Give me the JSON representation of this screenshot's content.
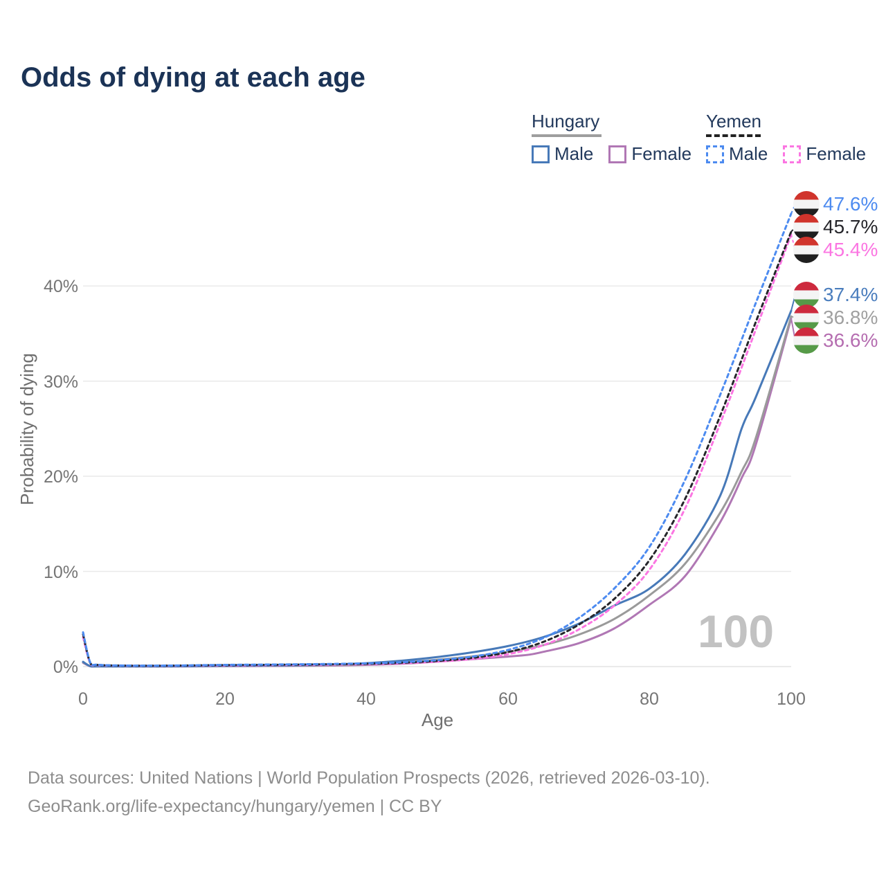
{
  "title": "Odds of dying at each age",
  "legend": {
    "groups": [
      {
        "country": "Hungary",
        "line_style": "solid",
        "underline_color": "#9e9e9e",
        "items": [
          {
            "label": "Male",
            "color": "#4779b8",
            "dashed": false
          },
          {
            "label": "Female",
            "color": "#b077b4",
            "dashed": false
          }
        ]
      },
      {
        "country": "Yemen",
        "line_style": "dashed",
        "underline_color": "#222222",
        "items": [
          {
            "label": "Male",
            "color": "#4d8bf0",
            "dashed": true
          },
          {
            "label": "Female",
            "color": "#fb76e2",
            "dashed": true
          }
        ]
      }
    ]
  },
  "chart_data": {
    "type": "line",
    "title": "Odds of dying at each age",
    "xlabel": "Age",
    "ylabel": "Probability of dying",
    "xlim": [
      0,
      100
    ],
    "ylim_percent": [
      0,
      48
    ],
    "grid": "horizontal-only",
    "xtick_labels": [
      "0",
      "20",
      "40",
      "60",
      "80",
      "100"
    ],
    "xtick_values": [
      0,
      20,
      40,
      60,
      80,
      100
    ],
    "ytick_labels": [
      "0%",
      "10%",
      "20%",
      "30%",
      "40%"
    ],
    "ytick_values": [
      0,
      10,
      20,
      30,
      40
    ],
    "age_indicator": "100",
    "flag_colors": {
      "yemen": [
        "#d0342c",
        "#f4f4f4",
        "#1f1f1f"
      ],
      "hungary": [
        "#cd2a3e",
        "#f4f4f4",
        "#569a48"
      ]
    },
    "series": [
      {
        "name": "Hungary Female",
        "country": "Hungary",
        "sex": "Female",
        "color": "#b077b4",
        "dashed": false,
        "end_value_percent": 36.6,
        "points": [
          [
            0,
            0.4
          ],
          [
            1,
            0.04
          ],
          [
            2,
            0.02
          ],
          [
            5,
            0.015
          ],
          [
            10,
            0.015
          ],
          [
            15,
            0.025
          ],
          [
            20,
            0.04
          ],
          [
            25,
            0.055
          ],
          [
            30,
            0.08
          ],
          [
            35,
            0.11
          ],
          [
            40,
            0.18
          ],
          [
            45,
            0.3
          ],
          [
            50,
            0.52
          ],
          [
            55,
            0.78
          ],
          [
            60,
            1.05
          ],
          [
            63,
            1.25
          ],
          [
            65,
            1.55
          ],
          [
            70,
            2.45
          ],
          [
            75,
            4.0
          ],
          [
            80,
            6.5
          ],
          [
            85,
            9.5
          ],
          [
            90,
            15.2
          ],
          [
            93,
            19.8
          ],
          [
            95,
            23.3
          ],
          [
            100,
            36.6
          ]
        ]
      },
      {
        "name": "Hungary Both sexes",
        "country": "Hungary",
        "sex": "Both",
        "color": "#9a9a9a",
        "dashed": false,
        "end_value_percent": 36.8,
        "points": [
          [
            0,
            0.45
          ],
          [
            1,
            0.05
          ],
          [
            2,
            0.02
          ],
          [
            5,
            0.02
          ],
          [
            10,
            0.02
          ],
          [
            15,
            0.03
          ],
          [
            20,
            0.06
          ],
          [
            25,
            0.08
          ],
          [
            30,
            0.11
          ],
          [
            35,
            0.16
          ],
          [
            40,
            0.26
          ],
          [
            45,
            0.44
          ],
          [
            50,
            0.72
          ],
          [
            55,
            1.08
          ],
          [
            60,
            1.55
          ],
          [
            65,
            2.25
          ],
          [
            70,
            3.35
          ],
          [
            75,
            5.0
          ],
          [
            80,
            7.5
          ],
          [
            85,
            10.8
          ],
          [
            90,
            16.2
          ],
          [
            93,
            20.5
          ],
          [
            95,
            24.0
          ],
          [
            100,
            36.8
          ]
        ]
      },
      {
        "name": "Hungary Male",
        "country": "Hungary",
        "sex": "Male",
        "color": "#4779b8",
        "dashed": false,
        "end_value_percent": 37.4,
        "points": [
          [
            0,
            0.5
          ],
          [
            1,
            0.05
          ],
          [
            2,
            0.03
          ],
          [
            5,
            0.02
          ],
          [
            10,
            0.02
          ],
          [
            15,
            0.04
          ],
          [
            20,
            0.08
          ],
          [
            25,
            0.1
          ],
          [
            30,
            0.14
          ],
          [
            35,
            0.21
          ],
          [
            40,
            0.36
          ],
          [
            45,
            0.62
          ],
          [
            50,
            1.0
          ],
          [
            55,
            1.5
          ],
          [
            60,
            2.15
          ],
          [
            65,
            3.1
          ],
          [
            70,
            4.5
          ],
          [
            75,
            6.4
          ],
          [
            80,
            8.2
          ],
          [
            85,
            11.8
          ],
          [
            90,
            18.0
          ],
          [
            93,
            25.0
          ],
          [
            95,
            28.3
          ],
          [
            100,
            37.4
          ]
        ]
      },
      {
        "name": "Yemen Female",
        "country": "Yemen",
        "sex": "Female",
        "color": "#fb76e2",
        "dashed": true,
        "end_value_percent": 45.4,
        "points": [
          [
            0,
            3.1
          ],
          [
            1,
            0.38
          ],
          [
            2,
            0.16
          ],
          [
            5,
            0.1
          ],
          [
            10,
            0.08
          ],
          [
            15,
            0.1
          ],
          [
            20,
            0.13
          ],
          [
            25,
            0.15
          ],
          [
            30,
            0.18
          ],
          [
            35,
            0.21
          ],
          [
            40,
            0.27
          ],
          [
            45,
            0.36
          ],
          [
            50,
            0.52
          ],
          [
            55,
            0.8
          ],
          [
            60,
            1.3
          ],
          [
            65,
            2.25
          ],
          [
            70,
            3.9
          ],
          [
            75,
            6.4
          ],
          [
            80,
            10.2
          ],
          [
            85,
            16.6
          ],
          [
            90,
            25.6
          ],
          [
            95,
            35.4
          ],
          [
            100,
            45.4
          ]
        ]
      },
      {
        "name": "Yemen Both sexes",
        "country": "Yemen",
        "sex": "Both",
        "color": "#26262b",
        "dashed": true,
        "end_value_percent": 45.7,
        "points": [
          [
            0,
            3.4
          ],
          [
            1,
            0.42
          ],
          [
            2,
            0.18
          ],
          [
            5,
            0.11
          ],
          [
            10,
            0.09
          ],
          [
            15,
            0.12
          ],
          [
            20,
            0.16
          ],
          [
            25,
            0.18
          ],
          [
            30,
            0.21
          ],
          [
            35,
            0.25
          ],
          [
            40,
            0.3
          ],
          [
            45,
            0.41
          ],
          [
            50,
            0.6
          ],
          [
            55,
            0.92
          ],
          [
            60,
            1.52
          ],
          [
            65,
            2.6
          ],
          [
            70,
            4.4
          ],
          [
            75,
            7.1
          ],
          [
            80,
            11.2
          ],
          [
            85,
            17.6
          ],
          [
            90,
            26.4
          ],
          [
            95,
            36.2
          ],
          [
            100,
            45.7
          ]
        ]
      },
      {
        "name": "Yemen Male",
        "country": "Yemen",
        "sex": "Male",
        "color": "#4d8bf0",
        "dashed": true,
        "end_value_percent": 47.6,
        "points": [
          [
            0,
            3.6
          ],
          [
            1,
            0.45
          ],
          [
            2,
            0.2
          ],
          [
            5,
            0.12
          ],
          [
            10,
            0.1
          ],
          [
            15,
            0.13
          ],
          [
            20,
            0.18
          ],
          [
            25,
            0.21
          ],
          [
            30,
            0.24
          ],
          [
            35,
            0.28
          ],
          [
            40,
            0.34
          ],
          [
            45,
            0.46
          ],
          [
            50,
            0.68
          ],
          [
            55,
            1.05
          ],
          [
            60,
            1.75
          ],
          [
            65,
            3.0
          ],
          [
            70,
            5.1
          ],
          [
            75,
            8.2
          ],
          [
            80,
            12.6
          ],
          [
            85,
            19.6
          ],
          [
            90,
            28.6
          ],
          [
            95,
            38.2
          ],
          [
            100,
            47.6
          ]
        ]
      }
    ],
    "end_labels": [
      {
        "value": "47.6%",
        "color": "#4d8bf0",
        "flag": "yemen",
        "series": "Yemen Male"
      },
      {
        "value": "45.7%",
        "color": "#26262b",
        "flag": "yemen",
        "series": "Yemen Both sexes"
      },
      {
        "value": "45.4%",
        "color": "#fb76e2",
        "flag": "yemen",
        "series": "Yemen Female"
      },
      {
        "value": "37.4%",
        "color": "#4a7dbd",
        "flag": "hungary",
        "series": "Hungary Male"
      },
      {
        "value": "36.8%",
        "color": "#a0a0a0",
        "flag": "hungary",
        "series": "Hungary Both sexes"
      },
      {
        "value": "36.6%",
        "color": "#b56db0",
        "flag": "hungary",
        "series": "Hungary Female"
      }
    ]
  },
  "footer": {
    "line1": "Data sources: United Nations | World Population Prospects (2026, retrieved 2026-03-10).",
    "line2": "GeoRank.org/life-expectancy/hungary/yemen | CC BY"
  }
}
